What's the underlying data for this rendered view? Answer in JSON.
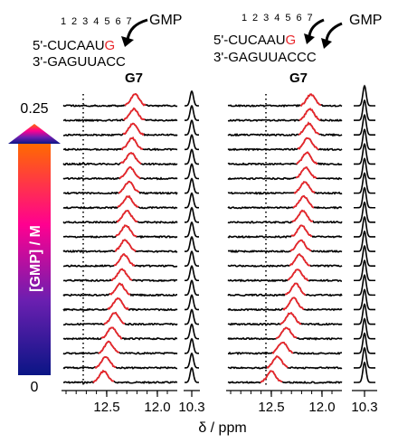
{
  "colors": {
    "highlight": "#e8262b",
    "trace": "#000000",
    "gradient_top": "#ff6a00",
    "gradient_mid": "#ff0090",
    "gradient_low": "#6a1fb0",
    "gradient_bottom": "#0a1585"
  },
  "left_panel": {
    "numbering": [
      "1",
      "2",
      "3",
      "4",
      "5",
      "6",
      "7"
    ],
    "strand_top_prefix": "5'-CUCAAU",
    "strand_top_highlight": "G",
    "strand_bottom": "3'-GAGUUACC",
    "ligand_label": "GMP",
    "peak_label": "G7",
    "x_ticks": [
      "12.5",
      "12.0"
    ],
    "inset_tick": "10.3",
    "peak_positions_ppm": [
      12.53,
      12.51,
      12.48,
      12.45,
      12.42,
      12.39,
      12.37,
      12.35,
      12.33,
      12.32,
      12.31,
      12.3,
      12.29,
      12.28,
      12.27,
      12.26,
      12.25,
      12.24,
      12.23,
      12.22
    ]
  },
  "right_panel": {
    "numbering": [
      "1",
      "2",
      "3",
      "4",
      "5",
      "6",
      "7"
    ],
    "strand_top_prefix": "5'-CUCAAU",
    "strand_top_highlight": "G",
    "strand_bottom": "3'-GAGUUACCC",
    "ligand_label": "GMP",
    "peak_label": "G7",
    "x_ticks": [
      "12.5",
      "12.0"
    ],
    "inset_tick": "10.3",
    "peak_positions_ppm": [
      12.5,
      12.44,
      12.39,
      12.35,
      12.31,
      12.28,
      12.26,
      12.24,
      12.22,
      12.21,
      12.2,
      12.19,
      12.18,
      12.17,
      12.16,
      12.15,
      12.14,
      12.13,
      12.12,
      12.11
    ]
  },
  "scale_bar": {
    "top_value": "0.25",
    "bottom_value": "0",
    "label": "[GMP] / M"
  },
  "x_axis_label": "δ / ppm",
  "dotted_line_ppm": 12.6,
  "spectra_count": 20
}
